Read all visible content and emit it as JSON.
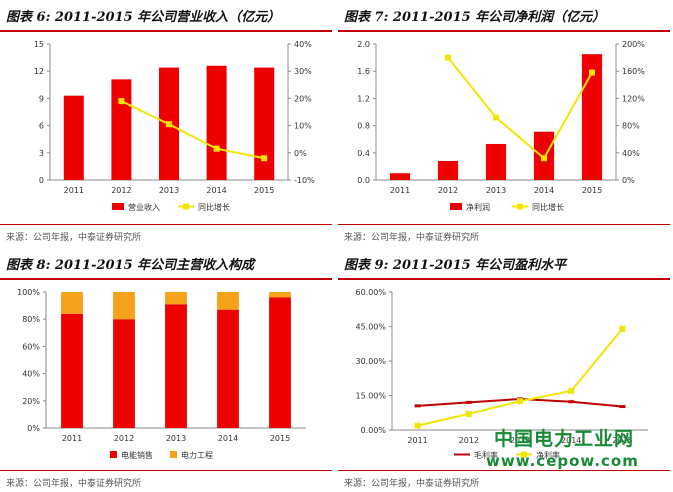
{
  "watermark": {
    "line1": "中国电力工业网",
    "line2": "www.cepow.com"
  },
  "colors": {
    "bar": "#ee0000",
    "line_yellow": "#f2e600",
    "line_red": "#c00000",
    "bar_top": "#f6a11a",
    "accent": "#c00000"
  },
  "chart_data": [
    {
      "type": "bar",
      "title": "图表 6:  2011-2015 年公司营业收入（亿元）",
      "source": "来源：公司年报，中泰证券研究所",
      "categories": [
        "2011",
        "2012",
        "2013",
        "2014",
        "2015"
      ],
      "series": [
        {
          "name": "营业收入",
          "type": "bar",
          "axis": "left",
          "values": [
            9.3,
            11.1,
            12.4,
            12.6,
            12.4
          ]
        },
        {
          "name": "同比增长",
          "type": "line",
          "axis": "right",
          "values": [
            null,
            19,
            10.5,
            1.5,
            -2
          ]
        }
      ],
      "y_left": {
        "min": 0,
        "max": 15,
        "ticks": [
          "0",
          "3",
          "6",
          "9",
          "12",
          "15"
        ]
      },
      "y_right": {
        "min": -10,
        "max": 40,
        "ticks": [
          "-10%",
          "0%",
          "10%",
          "20%",
          "30%",
          "40%"
        ]
      },
      "legend": "bottom"
    },
    {
      "type": "bar",
      "title": "图表 7:  2011-2015 年公司净利润（亿元）",
      "source": "来源：公司年报，中泰证券研究所",
      "categories": [
        "2011",
        "2012",
        "2013",
        "2014",
        "2015"
      ],
      "series": [
        {
          "name": "净利润",
          "type": "bar",
          "axis": "left",
          "values": [
            0.1,
            0.28,
            0.53,
            0.71,
            1.85
          ]
        },
        {
          "name": "同比增长",
          "type": "line",
          "axis": "right",
          "values": [
            null,
            180,
            92,
            32,
            158
          ]
        }
      ],
      "y_left": {
        "min": 0,
        "max": 2,
        "ticks": [
          "0.0",
          "0.4",
          "0.8",
          "1.2",
          "1.6",
          "2.0"
        ]
      },
      "y_right": {
        "min": 0,
        "max": 200,
        "ticks": [
          "0%",
          "40%",
          "80%",
          "120%",
          "160%",
          "200%"
        ]
      },
      "legend": "bottom"
    },
    {
      "type": "bar",
      "stacked": true,
      "title": "图表 8:  2011-2015 年公司主营收入构成",
      "source": "来源：公司年报，中泰证券研究所",
      "categories": [
        "2011",
        "2012",
        "2013",
        "2014",
        "2015"
      ],
      "series": [
        {
          "name": "电能销售",
          "values": [
            84,
            80,
            91,
            87,
            96
          ]
        },
        {
          "name": "电力工程",
          "values": [
            16,
            20,
            9,
            13,
            4
          ]
        }
      ],
      "y_left": {
        "min": 0,
        "max": 100,
        "ticks": [
          "0%",
          "20%",
          "40%",
          "60%",
          "80%",
          "100%"
        ]
      },
      "legend": "bottom"
    },
    {
      "type": "line",
      "title": "图表 9:  2011-2015 年公司盈利水平",
      "source": "来源：公司年报，中泰证券研究所",
      "categories": [
        "2011",
        "2012",
        "2013",
        "2014",
        "2015"
      ],
      "series": [
        {
          "name": "毛利率",
          "values": [
            10.5,
            12,
            13.5,
            12.3,
            10.2
          ]
        },
        {
          "name": "净利率",
          "values": [
            1.9,
            7,
            12.5,
            17,
            44
          ]
        }
      ],
      "y_left": {
        "min": 0,
        "max": 60,
        "ticks": [
          "0.00%",
          "15.00%",
          "30.00%",
          "45.00%",
          "60.00%"
        ]
      },
      "legend": "bottom"
    }
  ]
}
